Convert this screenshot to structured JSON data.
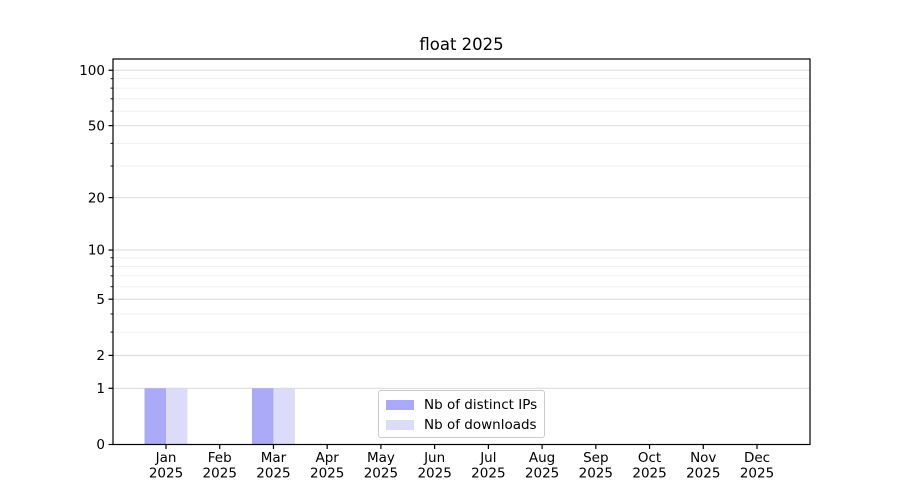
{
  "chart_data": {
    "type": "bar",
    "title": "float 2025",
    "categories": [
      "Jan",
      "Feb",
      "Mar",
      "Apr",
      "May",
      "Jun",
      "Jul",
      "Aug",
      "Sep",
      "Oct",
      "Nov",
      "Dec"
    ],
    "x_tick_second_line": "2025",
    "series": [
      {
        "name": "Nb of distinct IPs",
        "color": "#aaaaf8",
        "values": [
          1,
          0,
          1,
          0,
          0,
          0,
          0,
          0,
          0,
          0,
          0,
          0
        ]
      },
      {
        "name": "Nb of downloads",
        "color": "#dcdcf9",
        "values": [
          1,
          0,
          1,
          0,
          0,
          0,
          0,
          0,
          0,
          0,
          0,
          0
        ]
      }
    ],
    "y_axis": {
      "scale": "log1p",
      "ticks": [
        0,
        1,
        2,
        5,
        10,
        20,
        50,
        100
      ],
      "minor_gridlines": [
        3,
        4,
        6,
        7,
        8,
        9,
        30,
        40,
        60,
        70,
        80,
        90
      ],
      "max": 115
    },
    "legend": {
      "position": "lower center"
    },
    "grid": {
      "major_color": "#d9d9d9",
      "minor_color": "#f0f0f0"
    },
    "axis_color": "#000000",
    "text_color": "#000000"
  }
}
